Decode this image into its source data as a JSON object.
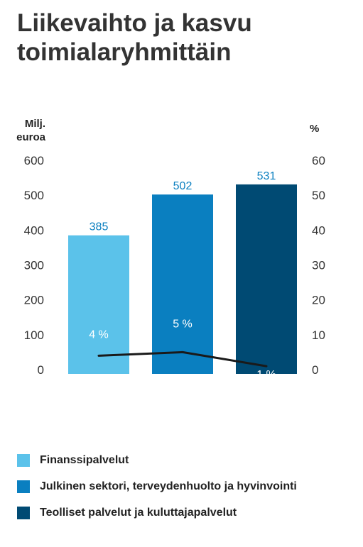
{
  "title_lines": [
    "Liikevaihto ja kasvu",
    "toimialaryhmittäin"
  ],
  "left_unit": [
    "Milj.",
    "euroa"
  ],
  "right_unit": "%",
  "colors": {
    "Finanssipalvelut": "#5bc2ea",
    "Julkinen sektori, terveydenhuolto ja hyvinvointi": "#0a7fc0",
    "Teolliset palvelut ja kuluttajapalvelut": "#004a73",
    "line": "#1a1a1a"
  },
  "chart_data": {
    "type": "bar",
    "categories": [
      "Finanssipalvelut",
      "Julkinen sektori, terveydenhuolto ja hyvinvointi",
      "Teolliset palvelut ja kuluttajapalvelut"
    ],
    "series": [
      {
        "values": [
          385,
          502,
          531
        ],
        "labels": [
          "385",
          "502",
          "531"
        ],
        "axis": "left"
      },
      {
        "values": [
          4,
          5,
          1
        ],
        "labels": [
          "4 %",
          "5 %",
          "1 %"
        ],
        "axis": "right",
        "type": "line"
      }
    ],
    "left_axis": {
      "ylim": [
        0,
        600
      ],
      "ticks": [
        0,
        100,
        200,
        300,
        400,
        500,
        600
      ]
    },
    "right_axis": {
      "ylim": [
        0,
        60
      ],
      "ticks": [
        0,
        10,
        20,
        30,
        40,
        50,
        60
      ]
    },
    "grid": false,
    "legend_position": "bottom"
  }
}
